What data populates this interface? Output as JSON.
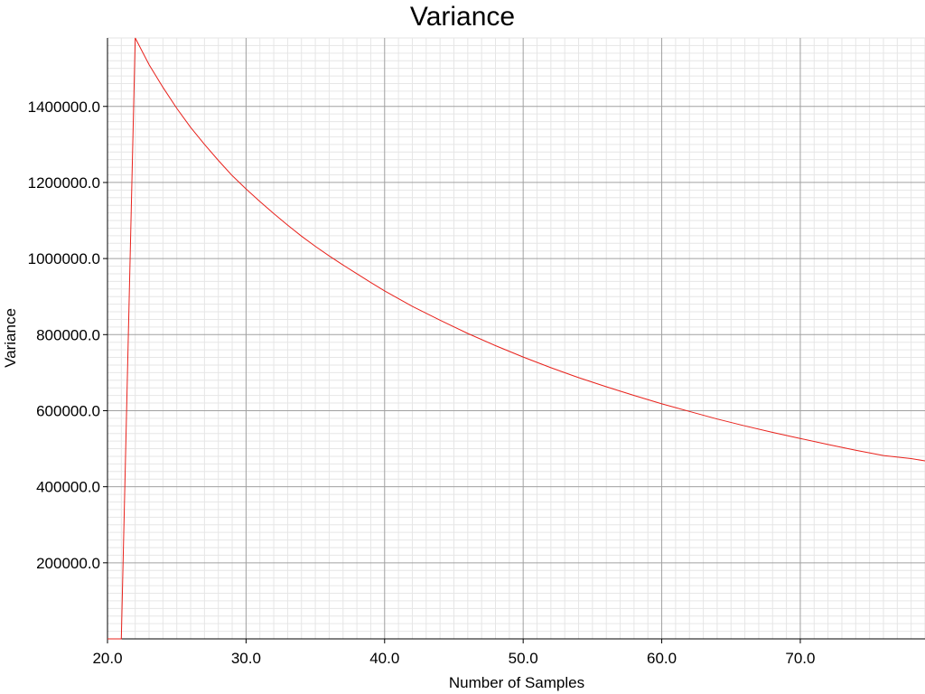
{
  "chart_data": {
    "type": "line",
    "title": "Variance",
    "xlabel": "Number of Samples",
    "ylabel": "Variance",
    "xlim": [
      20.0,
      79.0
    ],
    "ylim": [
      0,
      1580000
    ],
    "x_ticks": [
      "20.0",
      "30.0",
      "40.0",
      "50.0",
      "60.0",
      "70.0"
    ],
    "y_ticks": [
      "200000.0",
      "400000.0",
      "600000.0",
      "800000.0",
      "1000000.0",
      "1200000.0",
      "1400000.0"
    ],
    "grid": true,
    "series": [
      {
        "color": "#e8211b",
        "x": [
          20,
          21,
          22,
          23,
          24,
          25,
          26,
          27,
          28,
          29,
          30,
          31,
          32,
          33,
          34,
          35,
          36,
          37,
          38,
          39,
          40,
          42,
          44,
          46,
          48,
          50,
          52,
          54,
          56,
          58,
          60,
          62,
          64,
          66,
          68,
          70,
          72,
          74,
          76,
          78,
          79
        ],
        "values": [
          0,
          0,
          1580000,
          1510000,
          1450000,
          1395000,
          1345000,
          1300000,
          1258000,
          1218000,
          1183000,
          1150000,
          1118000,
          1088000,
          1059000,
          1032000,
          1007000,
          983000,
          960000,
          937000,
          915000,
          874000,
          838000,
          803000,
          771000,
          741000,
          713000,
          687000,
          663000,
          640000,
          618000,
          598000,
          578000,
          560000,
          543000,
          527000,
          511000,
          496000,
          482000,
          474000,
          468000
        ]
      }
    ]
  }
}
